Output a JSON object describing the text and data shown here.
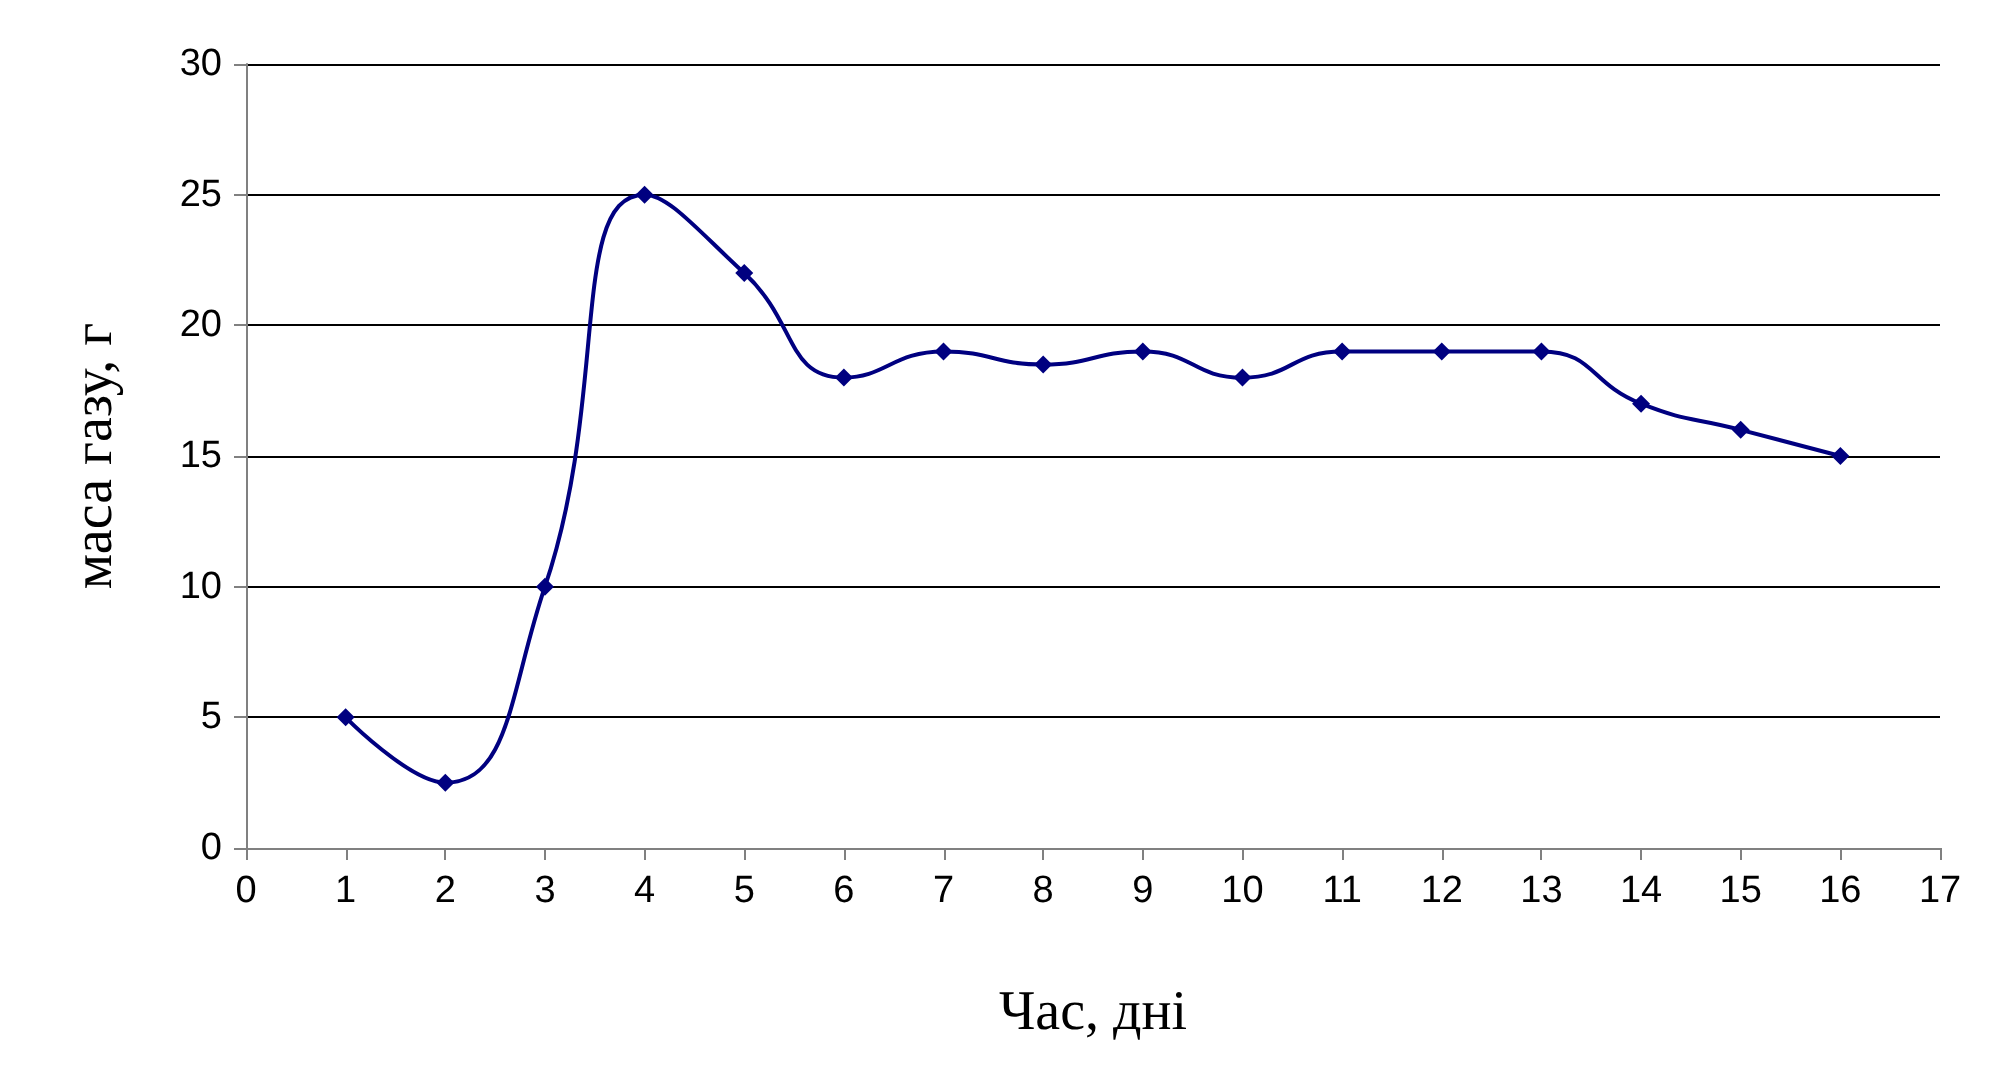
{
  "chart_data": {
    "type": "line",
    "xlabel": "Час, дні",
    "ylabel": "маса газу, г",
    "x": [
      1,
      2,
      3,
      4,
      5,
      6,
      7,
      8,
      9,
      10,
      11,
      12,
      13,
      14,
      15,
      16
    ],
    "series": [
      {
        "color": "#000080",
        "values": [
          5,
          2.5,
          10,
          25,
          22,
          18,
          19,
          18.5,
          19,
          18,
          19,
          19,
          19,
          17,
          16,
          15
        ]
      }
    ],
    "xlim": [
      0,
      17
    ],
    "xticks": [
      0,
      1,
      2,
      3,
      4,
      5,
      6,
      7,
      8,
      9,
      10,
      11,
      12,
      13,
      14,
      15,
      16,
      17
    ],
    "ylim": [
      0,
      30
    ],
    "yticks": [
      0,
      5,
      10,
      15,
      20,
      25,
      30
    ],
    "grid": "y",
    "marker": "diamond",
    "line_style": "solid"
  }
}
